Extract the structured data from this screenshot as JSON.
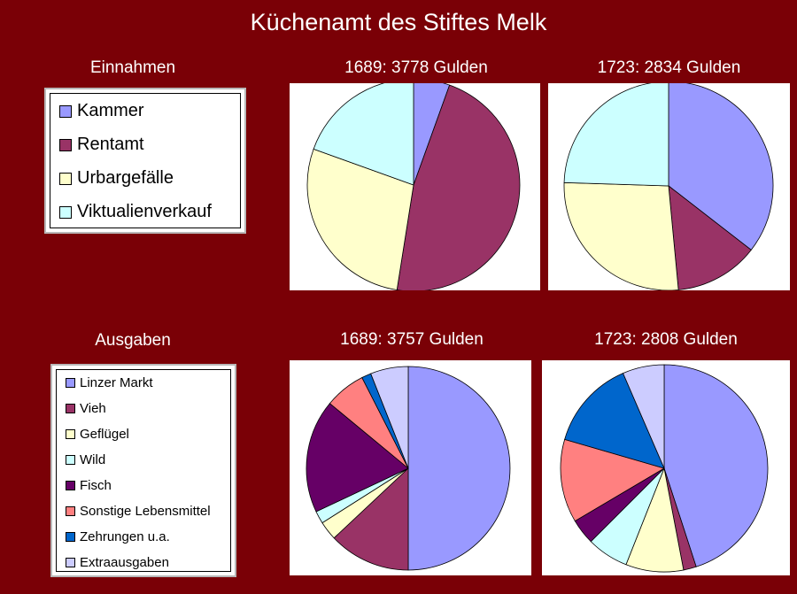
{
  "title": "Küchenamt des Stiftes Melk",
  "income": {
    "label": "Einnahmen",
    "legend": [
      {
        "name": "Kammer",
        "color": "#9999ff"
      },
      {
        "name": "Rentamt",
        "color": "#993366"
      },
      {
        "name": "Urbargefälle",
        "color": "#ffffcc"
      },
      {
        "name": "Viktualienverkauf",
        "color": "#ccffff"
      }
    ]
  },
  "expenses": {
    "label": "Ausgaben",
    "legend": [
      {
        "name": "Linzer Markt",
        "color": "#9999ff"
      },
      {
        "name": "Vieh",
        "color": "#993366"
      },
      {
        "name": "Geflügel",
        "color": "#ffffcc"
      },
      {
        "name": "Wild",
        "color": "#ccffff"
      },
      {
        "name": "Fisch",
        "color": "#660066"
      },
      {
        "name": "Sonstige Lebensmittel",
        "color": "#ff8080"
      },
      {
        "name": "Zehrungen u.a.",
        "color": "#0066cc"
      },
      {
        "name": "Extraausgaben",
        "color": "#ccccff"
      }
    ]
  },
  "chart_data": [
    {
      "type": "pie",
      "title": "1689: 3778 Gulden",
      "categories": [
        "Kammer",
        "Rentamt",
        "Urbargefälle",
        "Viktualienverkauf"
      ],
      "values": [
        5.5,
        47,
        28,
        19.5
      ],
      "colors": [
        "#9999ff",
        "#993366",
        "#ffffcc",
        "#ccffff"
      ]
    },
    {
      "type": "pie",
      "title": "1723: 2834 Gulden",
      "categories": [
        "Kammer",
        "Rentamt",
        "Urbargefälle",
        "Viktualienverkauf"
      ],
      "values": [
        35.5,
        13,
        27,
        24.5
      ],
      "colors": [
        "#9999ff",
        "#993366",
        "#ffffcc",
        "#ccffff"
      ]
    },
    {
      "type": "pie",
      "title": "1689: 3757 Gulden",
      "categories": [
        "Linzer Markt",
        "Vieh",
        "Geflügel",
        "Wild",
        "Fisch",
        "Sonstige Lebensmittel",
        "Zehrungen u.a.",
        "Extraausgaben"
      ],
      "values": [
        50,
        13,
        3,
        2,
        18,
        6.5,
        1.5,
        6
      ],
      "colors": [
        "#9999ff",
        "#993366",
        "#ffffcc",
        "#ccffff",
        "#660066",
        "#ff8080",
        "#0066cc",
        "#ccccff"
      ]
    },
    {
      "type": "pie",
      "title": "1723: 2808 Gulden",
      "categories": [
        "Linzer Markt",
        "Vieh",
        "Geflügel",
        "Wild",
        "Fisch",
        "Sonstige Lebensmittel",
        "Zehrungen u.a.",
        "Extraausgaben"
      ],
      "values": [
        45,
        2,
        9,
        6.5,
        4,
        13,
        14,
        6.5
      ],
      "colors": [
        "#9999ff",
        "#993366",
        "#ffffcc",
        "#ccffff",
        "#660066",
        "#ff8080",
        "#0066cc",
        "#ccccff"
      ]
    }
  ]
}
